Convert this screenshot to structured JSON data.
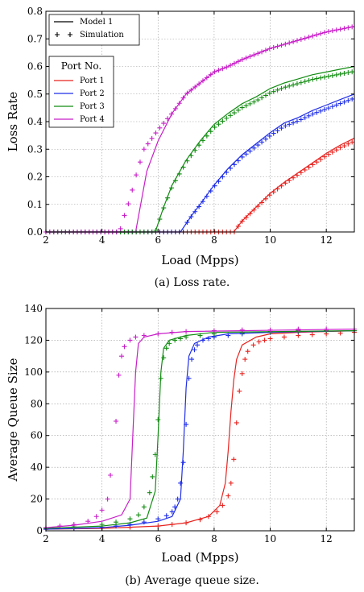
{
  "chart_data": [
    {
      "type": "line",
      "title": "",
      "caption": "(a) Loss rate.",
      "xlabel": "Load (Mpps)",
      "ylabel": "Loss Rate",
      "xlim": [
        2,
        13
      ],
      "ylim": [
        0,
        0.8
      ],
      "xticks": [
        2,
        4,
        6,
        8,
        10,
        12
      ],
      "yticks": [
        0.0,
        0.1,
        0.2,
        0.3,
        0.4,
        0.5,
        0.6,
        0.7,
        0.8
      ],
      "ytick_labels": [
        "0.0",
        "0.1",
        "0.2",
        "0.3",
        "0.4",
        "0.5",
        "0.6",
        "0.7",
        "0.8"
      ],
      "grid": true,
      "legend_style": {
        "placement": "top-left",
        "entries": [
          {
            "label": "Model 1",
            "style": "line",
            "color": "#000000"
          },
          {
            "label": "Simulation",
            "style": "plus",
            "color": "#000000"
          }
        ]
      },
      "legend_ports": {
        "title": "Port No.",
        "placement": "upper-left",
        "entries": [
          {
            "label": "Port 1",
            "color": "#e8231f"
          },
          {
            "label": "Port 2",
            "color": "#1f2ee8"
          },
          {
            "label": "Port 3",
            "color": "#128c12"
          },
          {
            "label": "Port 4",
            "color": "#c81fc8"
          }
        ]
      },
      "series": [
        {
          "name": "Port 1",
          "color": "#e8231f",
          "model": [
            [
              2,
              0
            ],
            [
              8.7,
              0
            ],
            [
              9.0,
              0.04
            ],
            [
              9.5,
              0.09
            ],
            [
              10,
              0.14
            ],
            [
              10.5,
              0.18
            ],
            [
              11,
              0.215
            ],
            [
              11.5,
              0.25
            ],
            [
              12,
              0.285
            ],
            [
              12.5,
              0.315
            ],
            [
              13,
              0.34
            ]
          ],
          "sim_x0": 8.75,
          "sim_x1": 13.0
        },
        {
          "name": "Port 2",
          "color": "#1f2ee8",
          "model": [
            [
              2,
              0
            ],
            [
              6.8,
              0
            ],
            [
              7.2,
              0.06
            ],
            [
              7.5,
              0.1
            ],
            [
              8,
              0.17
            ],
            [
              8.5,
              0.23
            ],
            [
              9,
              0.28
            ],
            [
              9.5,
              0.32
            ],
            [
              10,
              0.36
            ],
            [
              10.5,
              0.395
            ],
            [
              11,
              0.415
            ],
            [
              11.5,
              0.44
            ],
            [
              12,
              0.46
            ],
            [
              12.5,
              0.48
            ],
            [
              13,
              0.5
            ]
          ],
          "sim_x0": 6.9,
          "sim_x1": 13.0
        },
        {
          "name": "Port 3",
          "color": "#128c12",
          "model": [
            [
              2,
              0
            ],
            [
              5.9,
              0
            ],
            [
              6.2,
              0.09
            ],
            [
              6.5,
              0.17
            ],
            [
              7,
              0.26
            ],
            [
              7.5,
              0.33
            ],
            [
              8,
              0.39
            ],
            [
              8.5,
              0.43
            ],
            [
              9,
              0.465
            ],
            [
              9.5,
              0.49
            ],
            [
              10,
              0.52
            ],
            [
              10.5,
              0.54
            ],
            [
              11,
              0.555
            ],
            [
              11.5,
              0.57
            ],
            [
              12,
              0.58
            ],
            [
              12.5,
              0.59
            ],
            [
              13,
              0.6
            ]
          ],
          "sim_x0": 5.85,
          "sim_x1": 13.0
        },
        {
          "name": "Port 4",
          "color": "#c81fc8",
          "model": [
            [
              2,
              0
            ],
            [
              5.2,
              0
            ],
            [
              5.6,
              0.22
            ],
            [
              6,
              0.33
            ],
            [
              6.5,
              0.43
            ],
            [
              7,
              0.5
            ],
            [
              7.5,
              0.54
            ],
            [
              8,
              0.58
            ],
            [
              8.5,
              0.6
            ],
            [
              9,
              0.625
            ],
            [
              9.5,
              0.645
            ],
            [
              10,
              0.665
            ],
            [
              10.5,
              0.68
            ],
            [
              11,
              0.695
            ],
            [
              11.5,
              0.71
            ],
            [
              12,
              0.725
            ],
            [
              12.5,
              0.735
            ],
            [
              13,
              0.745
            ]
          ],
          "sim_curve": [
            [
              2,
              0
            ],
            [
              4.6,
              0
            ],
            [
              4.7,
              0.02
            ],
            [
              4.8,
              0.06
            ],
            [
              5.0,
              0.12
            ],
            [
              5.2,
              0.2
            ],
            [
              5.5,
              0.3
            ],
            [
              6,
              0.37
            ],
            [
              6.5,
              0.43
            ],
            [
              7,
              0.5
            ],
            [
              7.5,
              0.54
            ],
            [
              8,
              0.58
            ],
            [
              8.5,
              0.6
            ],
            [
              9,
              0.625
            ],
            [
              9.5,
              0.645
            ],
            [
              10,
              0.665
            ],
            [
              10.5,
              0.68
            ],
            [
              11,
              0.695
            ],
            [
              11.5,
              0.71
            ],
            [
              12,
              0.725
            ],
            [
              12.5,
              0.735
            ],
            [
              13,
              0.745
            ]
          ]
        }
      ]
    },
    {
      "type": "line",
      "title": "",
      "caption": "(b) Average queue size.",
      "xlabel": "Load (Mpps)",
      "ylabel": "Average Queue Size",
      "xlim": [
        2,
        13
      ],
      "ylim": [
        0,
        140
      ],
      "xticks": [
        2,
        4,
        6,
        8,
        10,
        12
      ],
      "yticks": [
        0,
        20,
        40,
        60,
        80,
        100,
        120,
        140
      ],
      "ytick_labels": [
        "0",
        "20",
        "40",
        "60",
        "80",
        "100",
        "120",
        "140"
      ],
      "grid": true,
      "series": [
        {
          "name": "Port 1",
          "color": "#e8231f",
          "model": [
            [
              2,
              1
            ],
            [
              4,
              1.5
            ],
            [
              6,
              3
            ],
            [
              7,
              5
            ],
            [
              7.8,
              9
            ],
            [
              8.2,
              16
            ],
            [
              8.4,
              30
            ],
            [
              8.5,
              50
            ],
            [
              8.6,
              75
            ],
            [
              8.7,
              95
            ],
            [
              8.8,
              108
            ],
            [
              9.0,
              117
            ],
            [
              9.5,
              122
            ],
            [
              10,
              124
            ],
            [
              11,
              125
            ],
            [
              13,
              126
            ]
          ],
          "sim": [
            [
              2,
              1
            ],
            [
              3,
              1.3
            ],
            [
              4,
              1.6
            ],
            [
              5,
              2.2
            ],
            [
              6,
              3
            ],
            [
              6.5,
              4
            ],
            [
              7,
              5
            ],
            [
              7.5,
              7
            ],
            [
              7.8,
              9
            ],
            [
              8.1,
              12
            ],
            [
              8.3,
              16
            ],
            [
              8.5,
              22
            ],
            [
              8.6,
              30
            ],
            [
              8.7,
              45
            ],
            [
              8.8,
              68
            ],
            [
              8.9,
              88
            ],
            [
              9.0,
              99
            ],
            [
              9.1,
              108
            ],
            [
              9.2,
              113
            ],
            [
              9.4,
              117
            ],
            [
              9.6,
              119
            ],
            [
              9.8,
              120
            ],
            [
              10,
              121
            ],
            [
              10.5,
              122
            ],
            [
              11,
              123
            ],
            [
              11.5,
              123.5
            ],
            [
              12,
              124
            ],
            [
              12.5,
              124.5
            ],
            [
              13,
              125
            ]
          ]
        },
        {
          "name": "Port 2",
          "color": "#1f2ee8",
          "model": [
            [
              2,
              1
            ],
            [
              4,
              2
            ],
            [
              5,
              3.5
            ],
            [
              6,
              6
            ],
            [
              6.5,
              9
            ],
            [
              6.8,
              20
            ],
            [
              6.9,
              50
            ],
            [
              7.0,
              90
            ],
            [
              7.1,
              110
            ],
            [
              7.3,
              118
            ],
            [
              7.8,
              122
            ],
            [
              8.5,
              124
            ],
            [
              10,
              125
            ],
            [
              13,
              126
            ]
          ],
          "sim": [
            [
              2,
              1
            ],
            [
              3,
              1.5
            ],
            [
              4,
              2.2
            ],
            [
              4.5,
              3
            ],
            [
              5,
              4
            ],
            [
              5.5,
              5.5
            ],
            [
              6,
              7.5
            ],
            [
              6.3,
              9.5
            ],
            [
              6.5,
              12
            ],
            [
              6.6,
              15
            ],
            [
              6.7,
              20
            ],
            [
              6.8,
              30
            ],
            [
              6.9,
              43
            ],
            [
              7.0,
              67
            ],
            [
              7.1,
              96
            ],
            [
              7.2,
              108
            ],
            [
              7.3,
              114
            ],
            [
              7.4,
              117
            ],
            [
              7.6,
              120
            ],
            [
              7.8,
              121
            ],
            [
              8,
              122
            ],
            [
              8.5,
              123
            ],
            [
              9,
              124
            ],
            [
              10,
              125
            ],
            [
              11,
              125.5
            ],
            [
              12,
              126
            ],
            [
              13,
              126
            ]
          ]
        },
        {
          "name": "Port 3",
          "color": "#128c12",
          "model": [
            [
              2,
              1.5
            ],
            [
              4,
              3
            ],
            [
              5,
              5
            ],
            [
              5.6,
              8
            ],
            [
              5.9,
              25
            ],
            [
              6.0,
              60
            ],
            [
              6.1,
              100
            ],
            [
              6.2,
              115
            ],
            [
              6.4,
              120
            ],
            [
              7,
              123
            ],
            [
              8,
              125
            ],
            [
              13,
              126
            ]
          ],
          "sim": [
            [
              2,
              1.5
            ],
            [
              3,
              2.5
            ],
            [
              4,
              4
            ],
            [
              4.5,
              5.5
            ],
            [
              5,
              7.5
            ],
            [
              5.3,
              10
            ],
            [
              5.5,
              15
            ],
            [
              5.7,
              24
            ],
            [
              5.8,
              34
            ],
            [
              5.9,
              48
            ],
            [
              6.0,
              70
            ],
            [
              6.1,
              96
            ],
            [
              6.2,
              109
            ],
            [
              6.3,
              115
            ],
            [
              6.4,
              118
            ],
            [
              6.6,
              120
            ],
            [
              6.8,
              121
            ],
            [
              7,
              122
            ],
            [
              7.5,
              123
            ],
            [
              8,
              124
            ],
            [
              9,
              125
            ],
            [
              10,
              125.5
            ],
            [
              11,
              126
            ],
            [
              12,
              126
            ],
            [
              13,
              126
            ]
          ]
        },
        {
          "name": "Port 4",
          "color": "#c81fc8",
          "model": [
            [
              2,
              2
            ],
            [
              3,
              3.5
            ],
            [
              4,
              6
            ],
            [
              4.7,
              10
            ],
            [
              5.0,
              20
            ],
            [
              5.1,
              60
            ],
            [
              5.2,
              100
            ],
            [
              5.3,
              118
            ],
            [
              5.5,
              122
            ],
            [
              6,
              124
            ],
            [
              7,
              125.5
            ],
            [
              13,
              127
            ]
          ],
          "sim": [
            [
              2,
              2
            ],
            [
              2.5,
              3
            ],
            [
              3,
              4
            ],
            [
              3.5,
              6
            ],
            [
              3.8,
              9
            ],
            [
              4.0,
              13
            ],
            [
              4.2,
              20
            ],
            [
              4.3,
              35
            ],
            [
              4.5,
              69
            ],
            [
              4.6,
              98
            ],
            [
              4.7,
              110
            ],
            [
              4.8,
              116
            ],
            [
              5.0,
              120
            ],
            [
              5.2,
              122
            ],
            [
              5.5,
              123
            ],
            [
              6,
              124
            ],
            [
              6.5,
              125
            ],
            [
              7,
              125.5
            ],
            [
              8,
              126
            ],
            [
              9,
              126.5
            ],
            [
              10,
              126.5
            ],
            [
              11,
              127
            ],
            [
              12,
              127
            ],
            [
              13,
              127
            ]
          ]
        }
      ]
    }
  ]
}
